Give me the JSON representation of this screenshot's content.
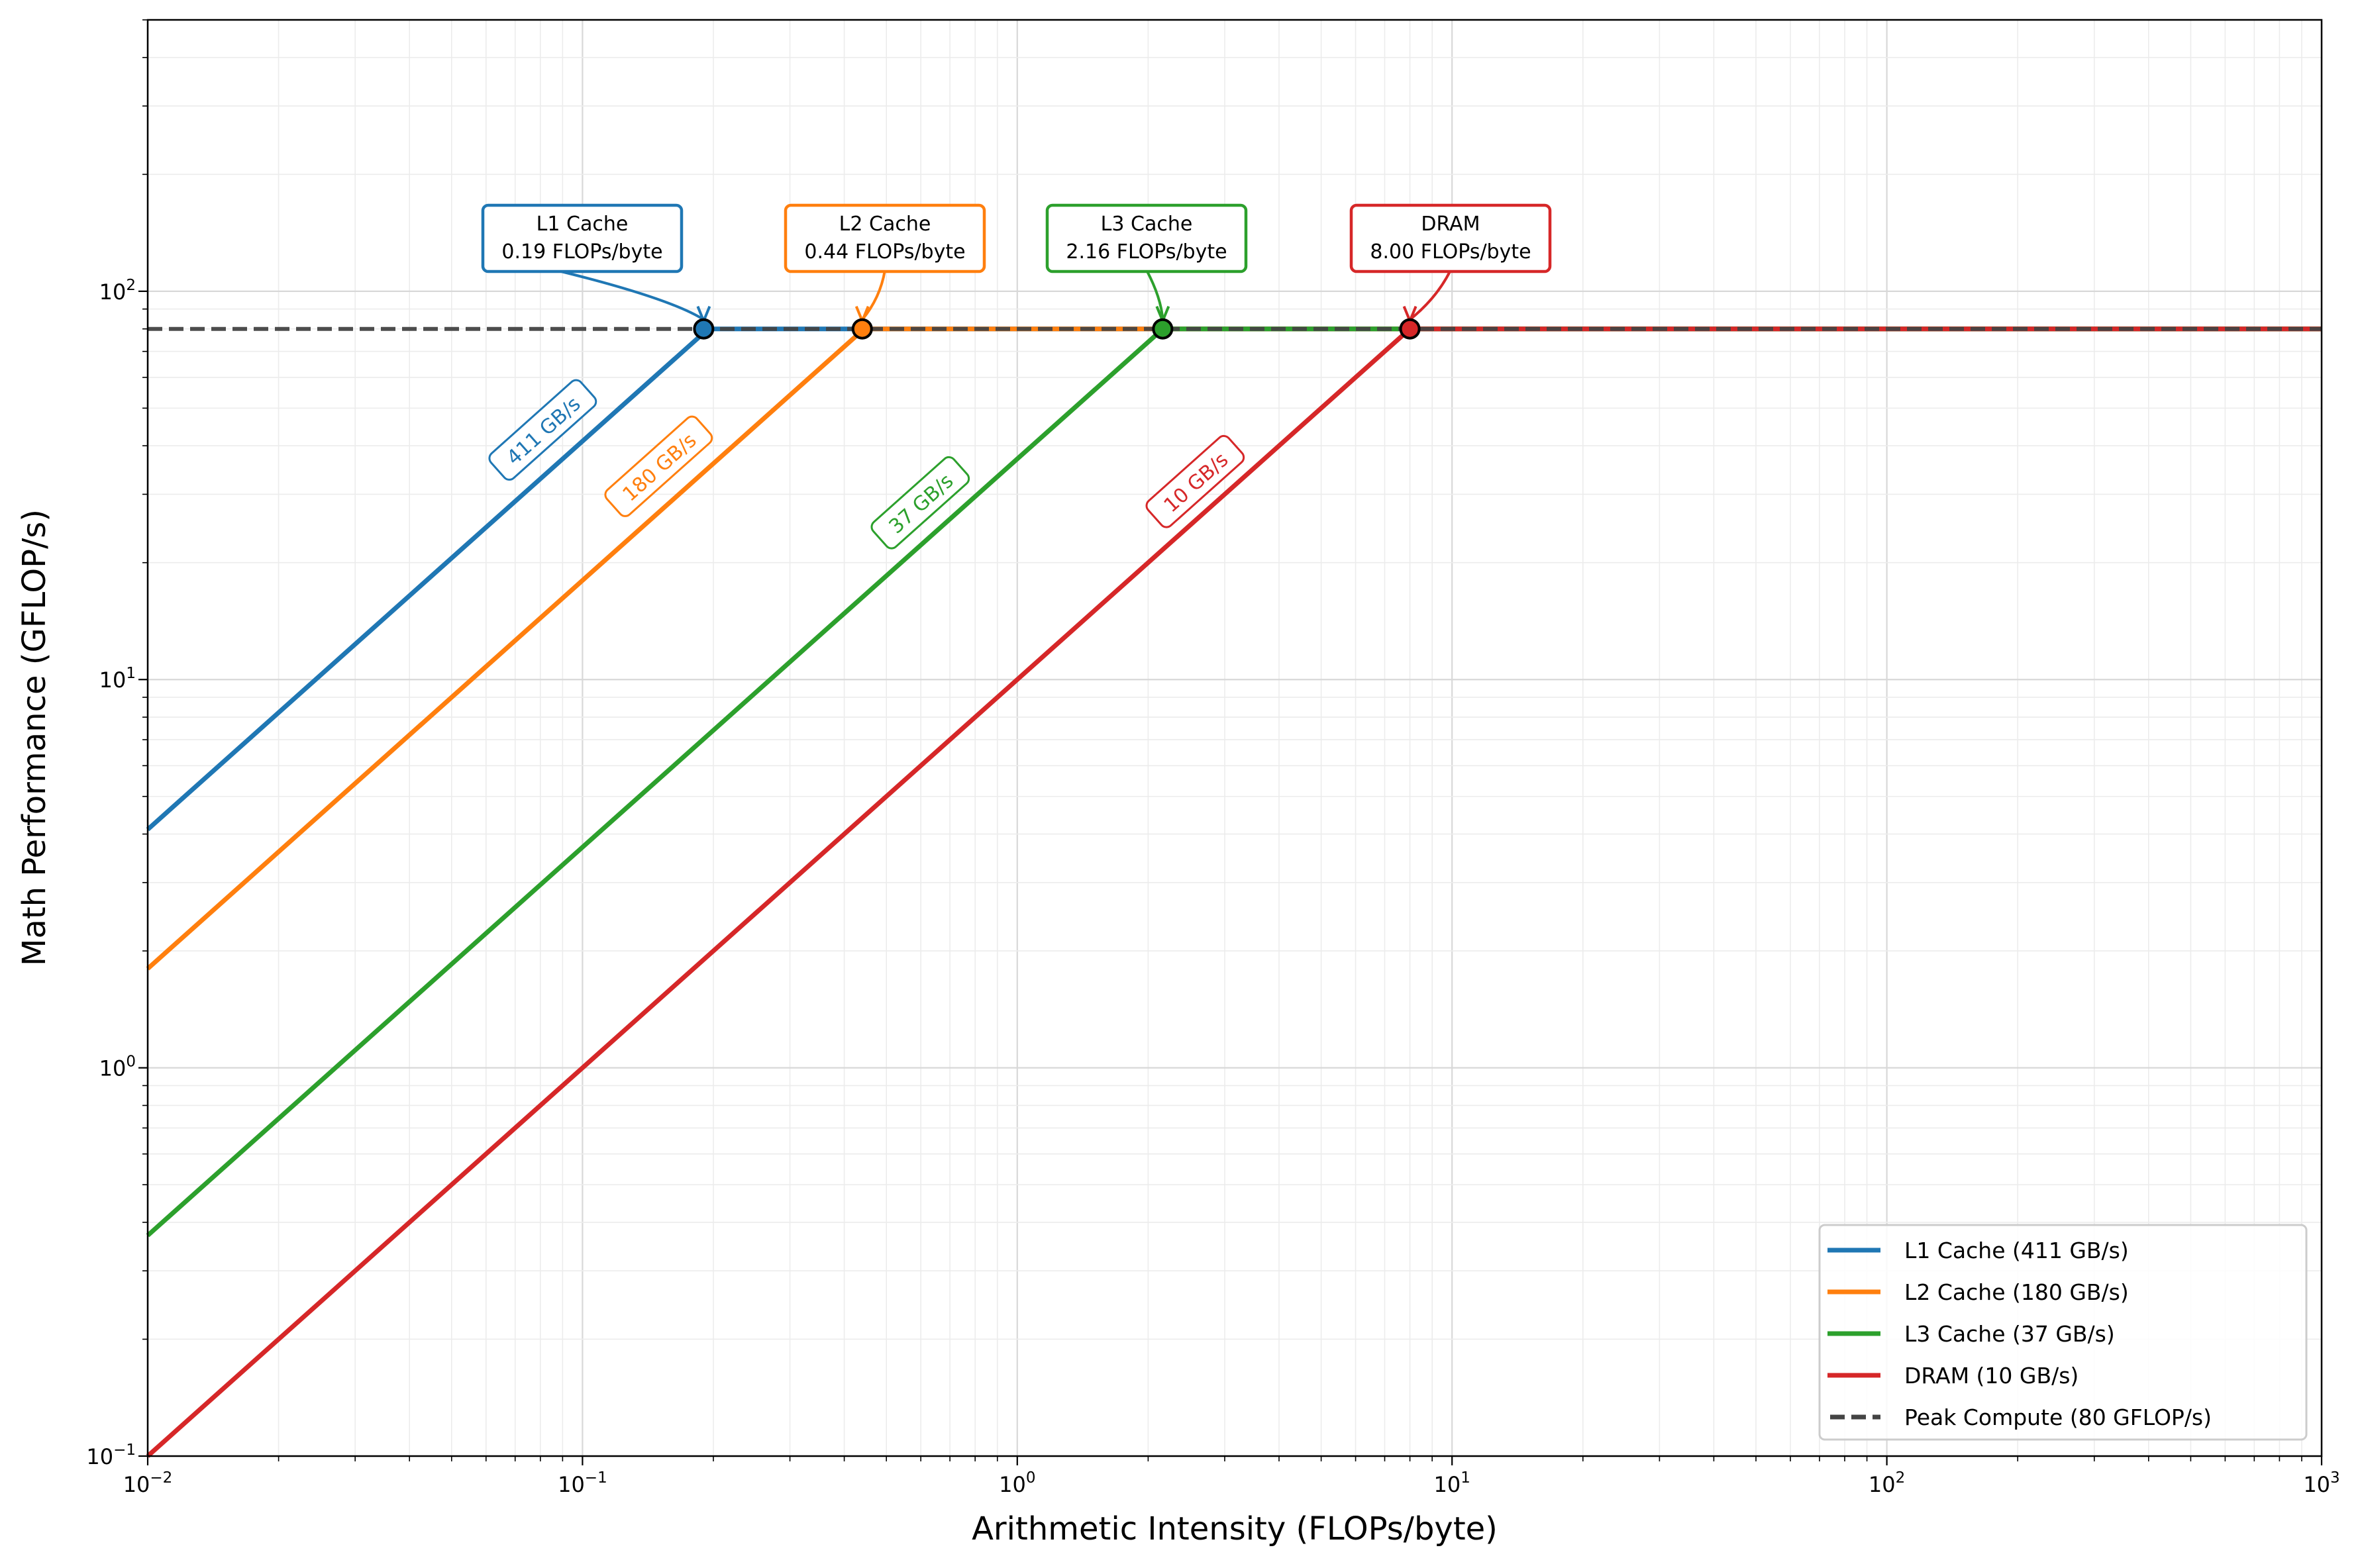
{
  "chart_data": {
    "type": "line",
    "title": "",
    "xlabel": "Arithmetic Intensity (FLOPs/byte)",
    "ylabel": "Math Performance (GFLOP/s)",
    "xscale": "log",
    "yscale": "log",
    "xlim": [
      0.01,
      1000
    ],
    "ylim": [
      0.1,
      500
    ],
    "grid": "major and minor",
    "legend_position": "lower-right",
    "x_ticks": [
      {
        "base": "10",
        "exp": "−2"
      },
      {
        "base": "10",
        "exp": "−1"
      },
      {
        "base": "10",
        "exp": "0"
      },
      {
        "base": "10",
        "exp": "1"
      },
      {
        "base": "10",
        "exp": "2"
      },
      {
        "base": "10",
        "exp": "3"
      }
    ],
    "y_ticks": [
      {
        "base": "10",
        "exp": "−1"
      },
      {
        "base": "10",
        "exp": "0"
      },
      {
        "base": "10",
        "exp": "1"
      },
      {
        "base": "10",
        "exp": "2"
      }
    ],
    "peak_compute": {
      "value": 80,
      "name": "Peak Compute (80 GFLOP/s)",
      "color": "#444444"
    },
    "series": [
      {
        "name": "L1 Cache (411 GB/s)",
        "bandwidth": 411,
        "color": "#1f77b4",
        "line_label": "411 GB/s",
        "ridge": 0.19,
        "annotation": [
          "L1 Cache",
          "0.19 FLOPs/byte"
        ]
      },
      {
        "name": "L2 Cache (180 GB/s)",
        "bandwidth": 180,
        "color": "#ff7f0e",
        "line_label": "180 GB/s",
        "ridge": 0.44,
        "annotation": [
          "L2 Cache",
          "0.44 FLOPs/byte"
        ]
      },
      {
        "name": "L3 Cache (37 GB/s)",
        "bandwidth": 37,
        "color": "#2ca02c",
        "line_label": "37 GB/s",
        "ridge": 2.16,
        "annotation": [
          "L3 Cache",
          "2.16 FLOPs/byte"
        ]
      },
      {
        "name": "DRAM (10 GB/s)",
        "bandwidth": 10,
        "color": "#d62728",
        "line_label": "10 GB/s",
        "ridge": 8.0,
        "annotation": [
          "DRAM",
          "8.00 FLOPs/byte"
        ]
      }
    ]
  }
}
